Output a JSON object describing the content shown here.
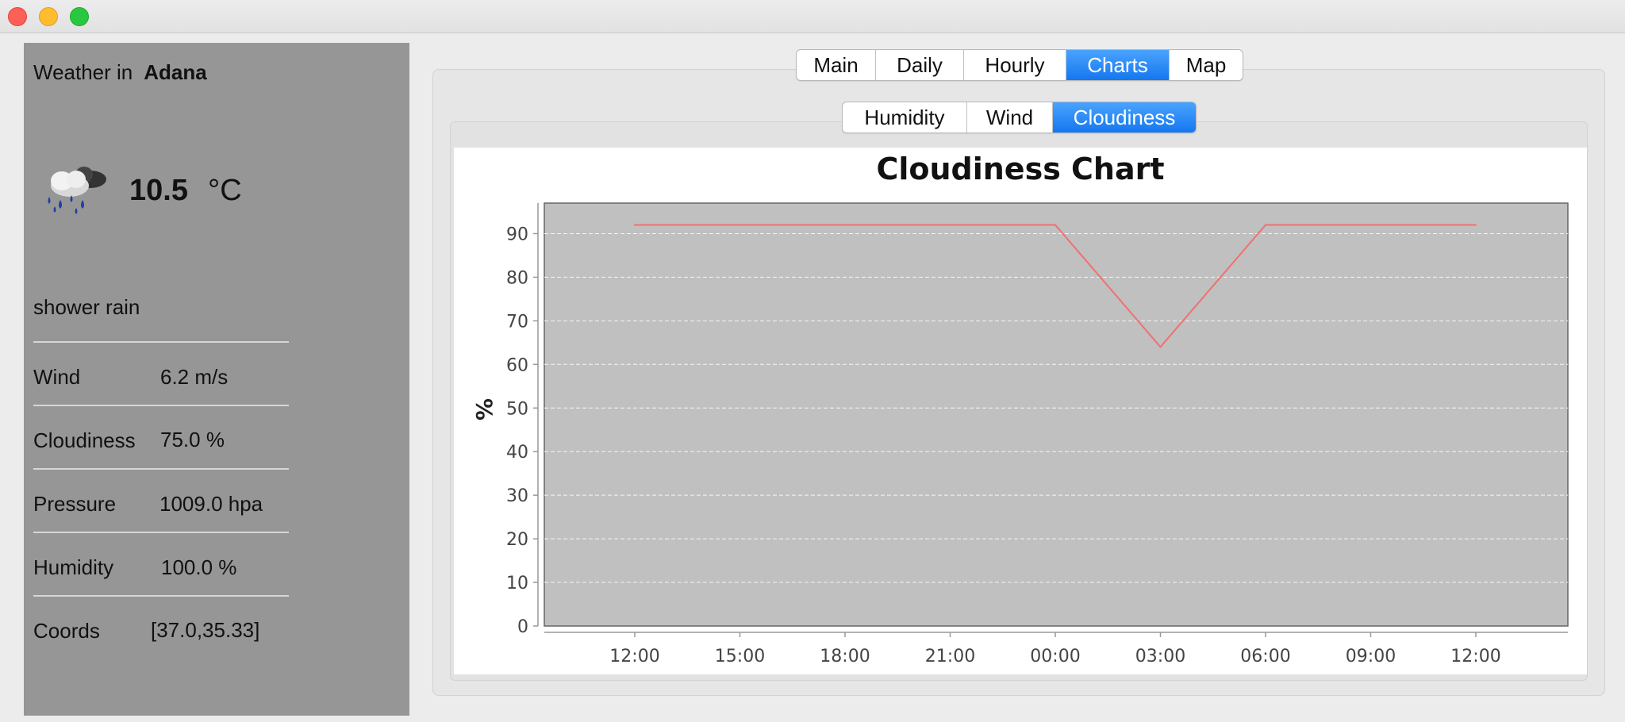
{
  "window": {
    "controls": [
      "close",
      "minimize",
      "maximize"
    ]
  },
  "current": {
    "heading_label": "Weather in",
    "city": "Adana",
    "icon": "shower-rain-icon",
    "temperature": "10.5",
    "unit": "°C",
    "description": "shower rain",
    "properties": [
      {
        "label": "Wind",
        "value": "6.2 m/s"
      },
      {
        "label": "Cloudiness",
        "value": "75.0 %"
      },
      {
        "label": "Pressure",
        "value": "1009.0 hpa"
      },
      {
        "label": "Humidity",
        "value": "100.0 %"
      },
      {
        "label": "Coords",
        "value": "[37.0,35.33]"
      }
    ]
  },
  "main_tabs": {
    "items": [
      "Main",
      "Daily",
      "Hourly",
      "Charts",
      "Map"
    ],
    "active": "Charts"
  },
  "chart_tabs": {
    "items": [
      "Humidity",
      "Wind",
      "Cloudiness"
    ],
    "active": "Cloudiness"
  },
  "colors": {
    "accent": "#1f86f5",
    "series_line": "#f07070",
    "plot_background": "#c0c0c0",
    "panel_background": "#969696"
  },
  "chart_data": {
    "type": "line",
    "title": "Cloudiness Chart",
    "xlabel": "",
    "ylabel": "%",
    "x": [
      "12:00",
      "15:00",
      "18:00",
      "21:00",
      "00:00",
      "03:00",
      "06:00",
      "09:00",
      "12:00"
    ],
    "series": [
      {
        "values": [
          92,
          92,
          92,
          92,
          92,
          64,
          92,
          92,
          92
        ]
      }
    ],
    "yticks": [
      0,
      10,
      20,
      30,
      40,
      50,
      60,
      70,
      80,
      90
    ],
    "ylim": [
      0,
      97
    ],
    "grid": true,
    "legend": "none"
  }
}
